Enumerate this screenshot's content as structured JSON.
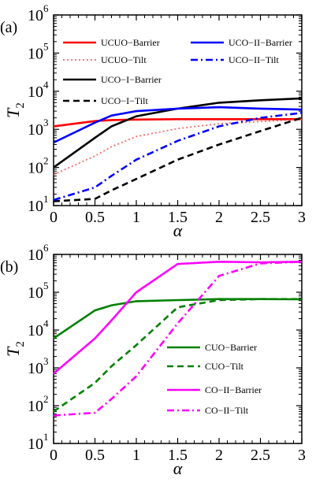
{
  "chart_data": [
    {
      "panel_label": "(a)",
      "type": "line",
      "xlabel": "α",
      "ylabel": "T",
      "ylabel_sub": "2",
      "xlim": [
        0,
        3
      ],
      "ylim": [
        10,
        1000000
      ],
      "yscale": "log",
      "x_ticks": [
        "0",
        "0.5",
        "1",
        "1.5",
        "2",
        "2.5",
        "3"
      ],
      "y_ticks": [
        {
          "base": "10",
          "exp": "1"
        },
        {
          "base": "10",
          "exp": "2"
        },
        {
          "base": "10",
          "exp": "3"
        },
        {
          "base": "10",
          "exp": "4"
        },
        {
          "base": "10",
          "exp": "5"
        },
        {
          "base": "10",
          "exp": "6"
        }
      ],
      "legend_placement": "top",
      "series": [
        {
          "name": "UCUO−Barrier",
          "color": "#ff0000",
          "style": "solid",
          "x": [
            0,
            0.5,
            0.7,
            1,
            1.5,
            2,
            2.5,
            3
          ],
          "y": [
            1200,
            1650,
            1750,
            1800,
            1850,
            1850,
            1850,
            1850
          ]
        },
        {
          "name": "UCUO−Tilt",
          "color": "#ff6666",
          "style": "dotted",
          "x": [
            0,
            0.5,
            0.7,
            1,
            1.5,
            2,
            2.5,
            3
          ],
          "y": [
            65,
            200,
            350,
            650,
            1050,
            1400,
            1600,
            1800
          ]
        },
        {
          "name": "UCO−I−Barrier",
          "color": "#000000",
          "style": "solid",
          "x": [
            0,
            0.5,
            0.7,
            1,
            1.5,
            2,
            2.5,
            3
          ],
          "y": [
            100,
            600,
            1200,
            2200,
            3500,
            5000,
            5800,
            6500
          ]
        },
        {
          "name": "UCO−I−Tilt",
          "color": "#000000",
          "style": "dashed",
          "x": [
            0,
            0.5,
            0.7,
            1,
            1.5,
            2,
            2.5,
            3
          ],
          "y": [
            13,
            15,
            25,
            50,
            160,
            400,
            900,
            2000
          ]
        },
        {
          "name": "UCO−II−Barrier",
          "color": "#0000ff",
          "style": "solid",
          "x": [
            0,
            0.5,
            0.7,
            1,
            1.5,
            2,
            2.5,
            3
          ],
          "y": [
            450,
            1500,
            2300,
            3000,
            3500,
            3800,
            3500,
            3300
          ]
        },
        {
          "name": "UCO−II−Tilt",
          "color": "#0000ff",
          "style": "dashdot",
          "x": [
            0,
            0.5,
            0.7,
            1,
            1.5,
            2,
            2.5,
            3
          ],
          "y": [
            14,
            30,
            60,
            160,
            500,
            1200,
            2000,
            2700
          ]
        }
      ]
    },
    {
      "panel_label": "(b)",
      "type": "line",
      "xlabel": "α",
      "ylabel": "T",
      "ylabel_sub": "2",
      "xlim": [
        0,
        3
      ],
      "ylim": [
        10,
        1000000
      ],
      "yscale": "log",
      "x_ticks": [
        "0",
        "0.5",
        "1",
        "1.5",
        "2",
        "2.5",
        "3"
      ],
      "y_ticks": [
        {
          "base": "10",
          "exp": "1"
        },
        {
          "base": "10",
          "exp": "2"
        },
        {
          "base": "10",
          "exp": "3"
        },
        {
          "base": "10",
          "exp": "4"
        },
        {
          "base": "10",
          "exp": "5"
        },
        {
          "base": "10",
          "exp": "6"
        }
      ],
      "legend_placement": "lower-right",
      "series": [
        {
          "name": "CUO−Barrier",
          "color": "#008000",
          "style": "solid",
          "x": [
            0,
            0.5,
            0.7,
            1,
            1.5,
            2,
            2.5,
            3
          ],
          "y": [
            6000,
            33000,
            45000,
            58000,
            62000,
            66000,
            66000,
            65000
          ]
        },
        {
          "name": "CUO−Tilt",
          "color": "#008000",
          "style": "dashed",
          "x": [
            0,
            0.5,
            0.7,
            1,
            1.5,
            2,
            2.5,
            3
          ],
          "y": [
            70,
            400,
            1100,
            4000,
            40000,
            62000,
            66000,
            66000
          ]
        },
        {
          "name": "CO−II−Barrier",
          "color": "#ff00ff",
          "style": "solid",
          "x": [
            0,
            0.5,
            0.7,
            1,
            1.5,
            2,
            2.5,
            3
          ],
          "y": [
            700,
            6000,
            18000,
            100000,
            560000,
            640000,
            620000,
            640000
          ]
        },
        {
          "name": "CO−II−Tilt",
          "color": "#ff00ff",
          "style": "dashdot",
          "x": [
            0,
            0.5,
            0.7,
            1,
            1.5,
            2,
            2.5,
            3
          ],
          "y": [
            55,
            65,
            150,
            600,
            15000,
            270000,
            580000,
            640000
          ]
        }
      ]
    }
  ]
}
